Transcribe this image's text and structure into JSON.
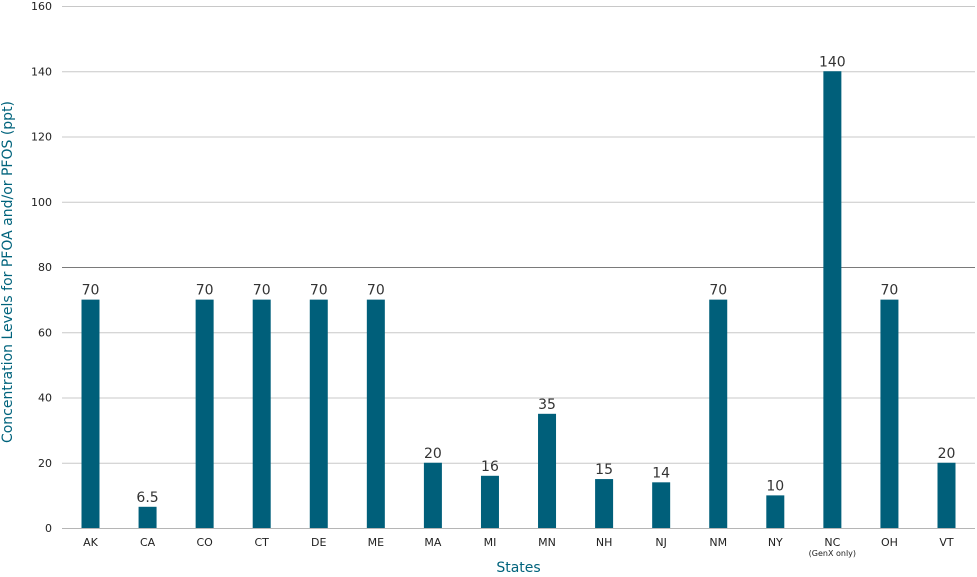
{
  "chart_data": {
    "type": "bar",
    "title": "",
    "xlabel": "States",
    "ylabel": "Concentration Levels for PFOA and/or PFOS (ppt)",
    "ylim": [
      0,
      160
    ],
    "yticks": [
      0,
      20,
      40,
      60,
      80,
      100,
      120,
      140,
      160
    ],
    "grid": true,
    "categories": [
      "AK",
      "CA",
      "CO",
      "CT",
      "DE",
      "ME",
      "MA",
      "MI",
      "MN",
      "NH",
      "NJ",
      "NM",
      "NY",
      "NC",
      "OH",
      "VT"
    ],
    "category_sublabels": {
      "NC": "(GenX only)"
    },
    "values": [
      70,
      6.5,
      70,
      70,
      70,
      70,
      20,
      16,
      35,
      15,
      14,
      70,
      10,
      140,
      70,
      20
    ],
    "data_labels": [
      "70",
      "6.5",
      "70",
      "70",
      "70",
      "70",
      "20",
      "16",
      "35",
      "15",
      "14",
      "70",
      "10",
      "140",
      "70",
      "20"
    ],
    "bar_color": "#005f7a",
    "label_color": "#00637c"
  }
}
